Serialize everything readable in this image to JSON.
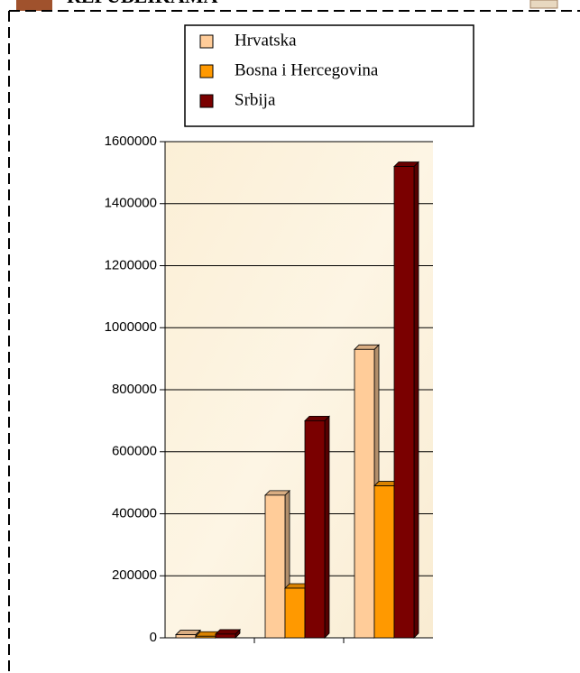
{
  "header": {
    "title": "REPUBLIKAMA"
  },
  "chart_data": {
    "type": "bar",
    "categories": [
      null,
      null,
      null
    ],
    "series": [
      {
        "name": "Hrvatska",
        "color": "#ffcc99",
        "values": [
          10000,
          460000,
          930000
        ]
      },
      {
        "name": "Bosna i Hercegovina",
        "color": "#ff9900",
        "values": [
          5000,
          160000,
          490000
        ]
      },
      {
        "name": "Srbija",
        "color": "#7a0000",
        "values": [
          12000,
          700000,
          1520000
        ]
      }
    ],
    "ylim": [
      0,
      1600000
    ],
    "yticks": [
      0,
      200000,
      400000,
      600000,
      800000,
      1000000,
      1200000,
      1400000,
      1600000
    ],
    "grid": true
  }
}
